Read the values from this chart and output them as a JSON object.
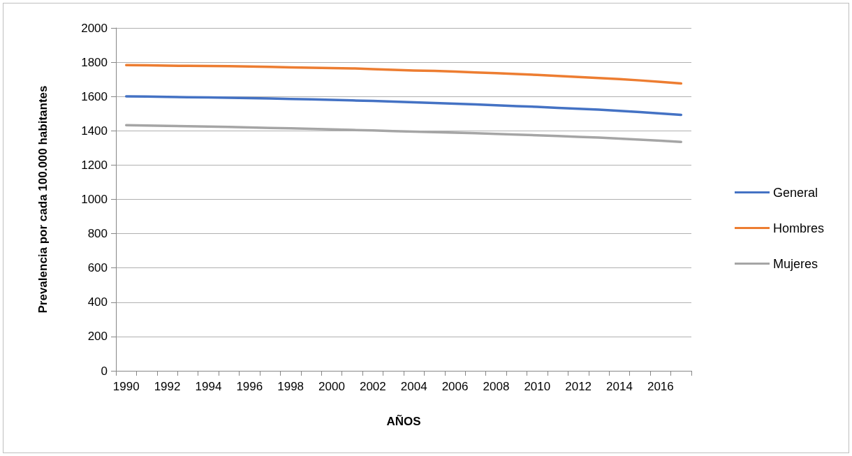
{
  "chart_data": {
    "type": "line",
    "xlabel": "AÑOS",
    "ylabel": "Prevalencia por cada 100.000 habitantes",
    "categories": [
      "1990",
      null,
      "1992",
      null,
      "1994",
      null,
      "1996",
      null,
      "1998",
      null,
      "2000",
      null,
      "2002",
      null,
      "2004",
      null,
      "2006",
      null,
      "2008",
      null,
      "2010",
      null,
      "2012",
      null,
      "2014",
      null,
      "2016",
      null
    ],
    "series": [
      {
        "name": "General",
        "color": "#4472c4",
        "values": [
          1601,
          1600,
          1598,
          1596,
          1595,
          1593,
          1591,
          1589,
          1586,
          1583,
          1580,
          1577,
          1574,
          1570,
          1566,
          1562,
          1558,
          1554,
          1549,
          1544,
          1540,
          1534,
          1529,
          1523,
          1516,
          1509,
          1501,
          1493
        ]
      },
      {
        "name": "Hombres",
        "color": "#ed7d31",
        "values": [
          1783,
          1782,
          1780,
          1779,
          1778,
          1777,
          1775,
          1773,
          1770,
          1768,
          1766,
          1764,
          1760,
          1756,
          1752,
          1749,
          1745,
          1740,
          1736,
          1731,
          1726,
          1720,
          1714,
          1708,
          1702,
          1694,
          1685,
          1676
        ]
      },
      {
        "name": "Mujeres",
        "color": "#a5a5a5",
        "values": [
          1433,
          1431,
          1429,
          1427,
          1425,
          1423,
          1420,
          1417,
          1414,
          1411,
          1408,
          1405,
          1402,
          1398,
          1395,
          1392,
          1389,
          1386,
          1382,
          1378,
          1374,
          1370,
          1365,
          1360,
          1354,
          1348,
          1342,
          1335
        ]
      }
    ],
    "ylim": [
      0,
      2000
    ],
    "yticks": [
      0,
      200,
      400,
      600,
      800,
      1000,
      1200,
      1400,
      1600,
      1800,
      2000
    ],
    "grid": "y",
    "legend": "right",
    "marker": "none",
    "line_style": "solid"
  }
}
